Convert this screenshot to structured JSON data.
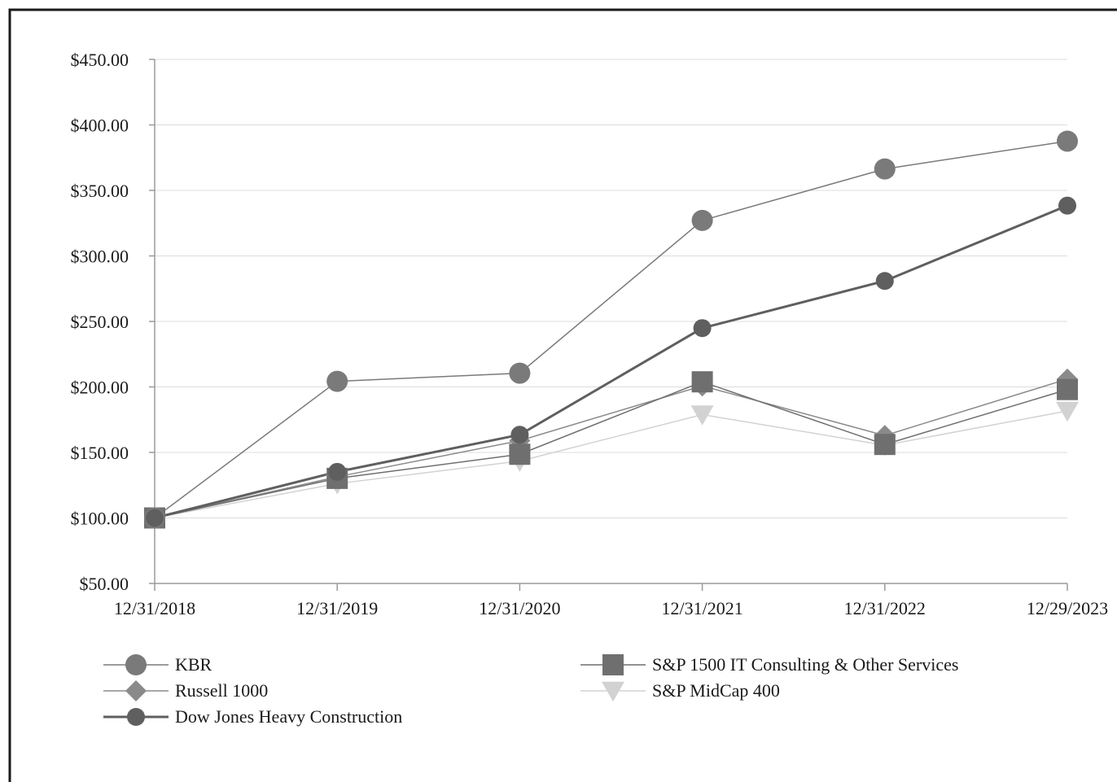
{
  "chart_data": {
    "type": "line",
    "categories": [
      "12/31/2018",
      "12/31/2019",
      "12/31/2020",
      "12/31/2021",
      "12/31/2022",
      "12/29/2023"
    ],
    "y_ticks": [
      "$50.00",
      "$100.00",
      "$150.00",
      "$200.00",
      "$250.00",
      "$300.00",
      "$350.00",
      "$400.00",
      "$450.00"
    ],
    "ylim": [
      50,
      450
    ],
    "grid": "horizontal",
    "legend_position": "bottom",
    "series": [
      {
        "name": "KBR",
        "marker": "circle",
        "color": "#7a7a7a",
        "values": [
          100,
          204.3,
          210.5,
          327.1,
          366.4,
          387.6
        ]
      },
      {
        "name": "S&P 1500 IT Consulting & Other Services",
        "marker": "square",
        "color": "#6f6f6f",
        "values": [
          100,
          130.2,
          148.6,
          203.9,
          156.1,
          198.0
        ]
      },
      {
        "name": "Russell 1000",
        "marker": "diamond",
        "color": "#8a8a8a",
        "values": [
          100,
          131.4,
          159.0,
          200.8,
          162.9,
          206.0
        ]
      },
      {
        "name": "S&P MidCap 400",
        "marker": "triangle-down",
        "color": "#d2d2d2",
        "values": [
          100,
          126.2,
          143.4,
          178.9,
          155.5,
          181.7
        ]
      },
      {
        "name": "Dow Jones Heavy Construction",
        "marker": "circle",
        "color": "#5f5f5f",
        "values": [
          100,
          135.2,
          163.5,
          244.9,
          280.9,
          338.4
        ]
      }
    ]
  }
}
